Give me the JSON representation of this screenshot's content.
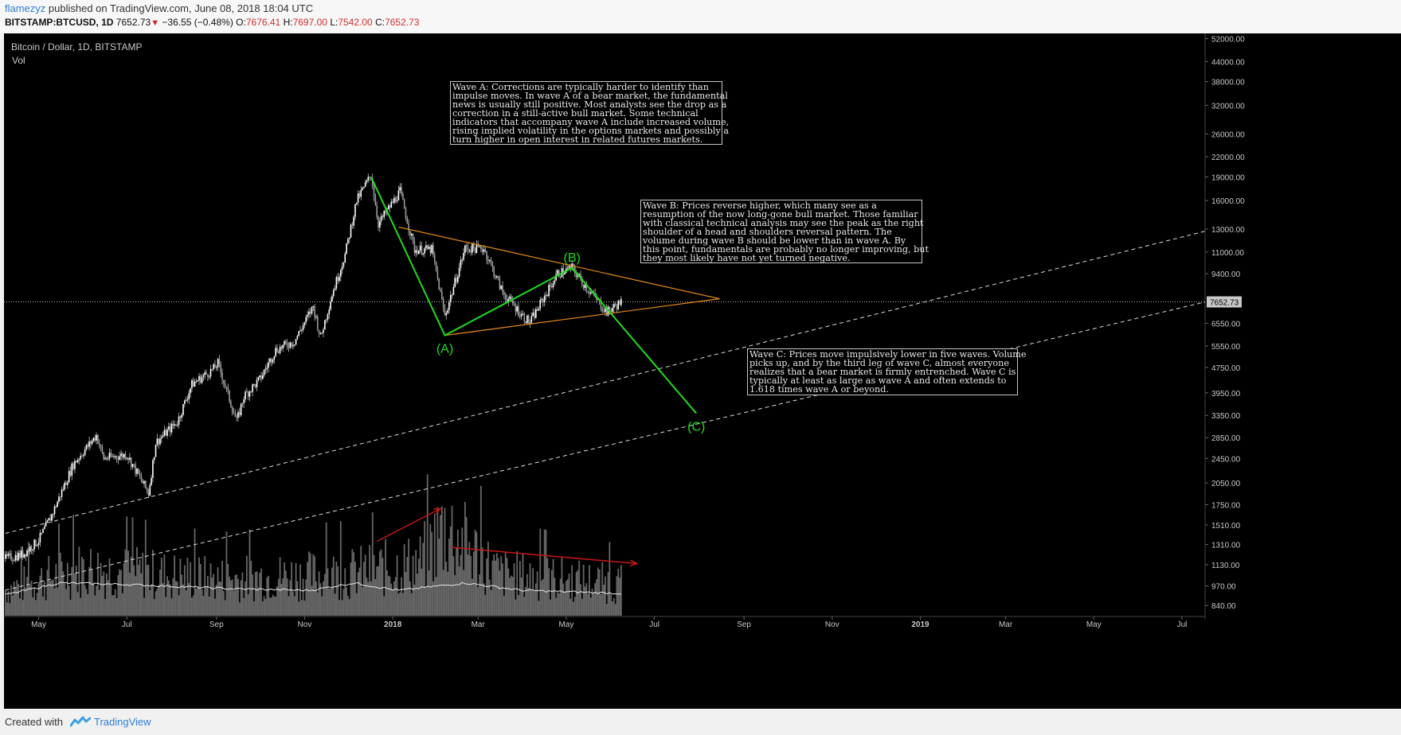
{
  "header": {
    "user": "flamezyz",
    "published": " published on TradingView.com, June 08, 2018 18:04 UTC",
    "symbol": "BITSTAMP:BTCUSD, 1D",
    "price": "7652.73",
    "arrow": "▼",
    "change": "−36.55 (−0.48%)",
    "o_label": "O:",
    "o_value": "7676.41",
    "h_label": "H:",
    "h_value": "7697.00",
    "l_label": "L:",
    "l_value": "7542.00",
    "c_label": "C:",
    "c_value": "7652.73"
  },
  "pane": {
    "title": "Bitcoin / Dollar, 1D, BITSTAMP",
    "volume_label": "Vol"
  },
  "notes": {
    "wave_a": "Wave A: Corrections are typically harder to identify than\nimpulse moves. In wave A of a bear market, the fundamental\nnews is usually still positive. Most analysts see the drop as a\ncorrection in a still-active bull market. Some technical\nindicators that accompany wave A include increased volume,\nrising implied volatility in the options markets and possibly a\nturn higher in open interest in related futures markets.",
    "wave_b": "Wave B: Prices reverse higher, which many see as a\nresumption of the now long-gone bull market. Those familiar\nwith classical technical analysis may see the peak as the right\nshoulder of a head and shoulders reversal pattern. The\nvolume during wave B should be lower than in wave A. By\nthis point, fundamentals are probably no longer improving, but\nthey most likely have not yet turned negative.",
    "wave_c": "Wave C: Prices move impulsively lower in five waves. Volume\npicks up, and by the third leg of wave C, almost everyone\nrealizes that a bear market is firmly entrenched. Wave C is\ntypically at least as large as wave A and often extends to\n1.618 times wave A or beyond."
  },
  "wave_labels": {
    "a": "(A)",
    "b": "(B)",
    "c": "(C)"
  },
  "colors": {
    "background": "#000000",
    "axis_text": "#c8c8c8",
    "wave_line": "#1fdb1f",
    "triangle": "#e68a1a",
    "volume_arrow": "#c41818",
    "price_tag": "#c8c8c8"
  },
  "footer": {
    "created": "Created with",
    "brand": "TradingView"
  },
  "chart_data": {
    "type": "candlestick",
    "title": "Bitcoin / Dollar, 1D, BITSTAMP",
    "y_scale": "log",
    "y_ticks": [
      52000,
      44000,
      38000,
      32000,
      26000,
      22000,
      19000,
      16000,
      13000,
      11000,
      9400,
      7652.73,
      6550,
      5550,
      4750,
      3950,
      3350,
      2850,
      2450,
      2050,
      1750,
      1510,
      1310,
      1130,
      970,
      840
    ],
    "y_tick_labels": [
      "52000.00",
      "44000.00",
      "38000.00",
      "32000.00",
      "26000.00",
      "22000.00",
      "19000.00",
      "16000.00",
      "13000.00",
      "11000.00",
      "9400.00",
      "7652.73",
      "6550.00",
      "5550.00",
      "4750.00",
      "3950.00",
      "3350.00",
      "2850.00",
      "2450.00",
      "2050.00",
      "1750.00",
      "1510.00",
      "1310.00",
      "1130.00",
      "970.00",
      "840.00"
    ],
    "ylim": [
      780,
      54000
    ],
    "current_price": 7652.73,
    "x_tick_labels": [
      "May",
      "Jul",
      "Sep",
      "Nov",
      "2018",
      "Mar",
      "May",
      "Jul",
      "Sep",
      "Nov",
      "2019",
      "Mar",
      "May",
      "Jul"
    ],
    "x_tick_dates": [
      "2017-05-01",
      "2017-07-01",
      "2017-09-01",
      "2017-11-01",
      "2018-01-01",
      "2018-03-01",
      "2018-05-01",
      "2018-07-01",
      "2018-09-01",
      "2018-11-01",
      "2019-01-01",
      "2019-03-01",
      "2019-05-01",
      "2019-07-01"
    ],
    "xlim": [
      "2017-04-07",
      "2019-07-17"
    ],
    "price_path": [
      [
        "2017-04-08",
        1180
      ],
      [
        "2017-04-20",
        1220
      ],
      [
        "2017-05-01",
        1350
      ],
      [
        "2017-05-10",
        1620
      ],
      [
        "2017-05-25",
        2350
      ],
      [
        "2017-06-10",
        2900
      ],
      [
        "2017-06-15",
        2450
      ],
      [
        "2017-07-01",
        2520
      ],
      [
        "2017-07-16",
        1900
      ],
      [
        "2017-07-21",
        2750
      ],
      [
        "2017-08-05",
        3200
      ],
      [
        "2017-08-15",
        4200
      ],
      [
        "2017-08-30",
        4700
      ],
      [
        "2017-09-02",
        4900
      ],
      [
        "2017-09-15",
        3200
      ],
      [
        "2017-09-20",
        3850
      ],
      [
        "2017-10-01",
        4350
      ],
      [
        "2017-10-12",
        5400
      ],
      [
        "2017-10-25",
        5750
      ],
      [
        "2017-11-07",
        7400
      ],
      [
        "2017-11-12",
        5900
      ],
      [
        "2017-11-20",
        8100
      ],
      [
        "2017-11-29",
        10800
      ],
      [
        "2017-12-07",
        16000
      ],
      [
        "2017-12-17",
        19300
      ],
      [
        "2017-12-22",
        13500
      ],
      [
        "2018-01-06",
        17100
      ],
      [
        "2018-01-16",
        11200
      ],
      [
        "2018-01-28",
        11200
      ],
      [
        "2018-02-06",
        6900
      ],
      [
        "2018-02-20",
        11300
      ],
      [
        "2018-03-05",
        11300
      ],
      [
        "2018-03-18",
        8200
      ],
      [
        "2018-04-01",
        6900
      ],
      [
        "2018-04-06",
        6600
      ],
      [
        "2018-04-25",
        9400
      ],
      [
        "2018-05-05",
        9800
      ],
      [
        "2018-05-15",
        8500
      ],
      [
        "2018-05-29",
        7100
      ],
      [
        "2018-06-08",
        7652.73
      ]
    ],
    "volume_level": [
      [
        "2017-04-08",
        0.25
      ],
      [
        "2017-06-01",
        0.45
      ],
      [
        "2017-09-01",
        0.35
      ],
      [
        "2017-12-01",
        0.4
      ],
      [
        "2018-01-20",
        0.5
      ],
      [
        "2018-02-06",
        0.85
      ],
      [
        "2018-03-15",
        0.4
      ],
      [
        "2018-06-08",
        0.3
      ]
    ],
    "volume_ma_level": [
      [
        "2017-04-08",
        0.14
      ],
      [
        "2017-05-15",
        0.22
      ],
      [
        "2017-07-01",
        0.21
      ],
      [
        "2017-09-15",
        0.18
      ],
      [
        "2017-11-05",
        0.17
      ],
      [
        "2017-12-05",
        0.22
      ],
      [
        "2018-01-05",
        0.17
      ],
      [
        "2018-02-20",
        0.22
      ],
      [
        "2018-04-01",
        0.17
      ],
      [
        "2018-06-08",
        0.15
      ]
    ],
    "drawings": {
      "elliott_wave": [
        [
          "2017-12-17",
          19000
        ],
        [
          "2018-02-06",
          6000
        ],
        [
          "2018-05-05",
          9800
        ],
        [
          "2018-07-30",
          3400
        ]
      ],
      "triangle_upper": [
        [
          "2018-01-05",
          13200
        ],
        [
          "2018-08-15",
          7830
        ]
      ],
      "triangle_lower": [
        [
          "2018-02-06",
          6000
        ],
        [
          "2018-08-15",
          7830
        ]
      ],
      "channel_upper": [
        [
          "2017-04-08",
          1420
        ],
        [
          "2019-07-17",
          12800
        ]
      ],
      "channel_lower": [
        [
          "2017-04-08",
          940
        ],
        [
          "2019-07-17",
          7650
        ]
      ],
      "volume_arrow_up": [
        [
          "2017-12-21",
          0.5
        ],
        [
          "2018-02-03",
          0.72
        ]
      ],
      "volume_arrow_down": [
        [
          "2018-02-10",
          0.46
        ],
        [
          "2018-06-19",
          0.35
        ]
      ]
    }
  }
}
